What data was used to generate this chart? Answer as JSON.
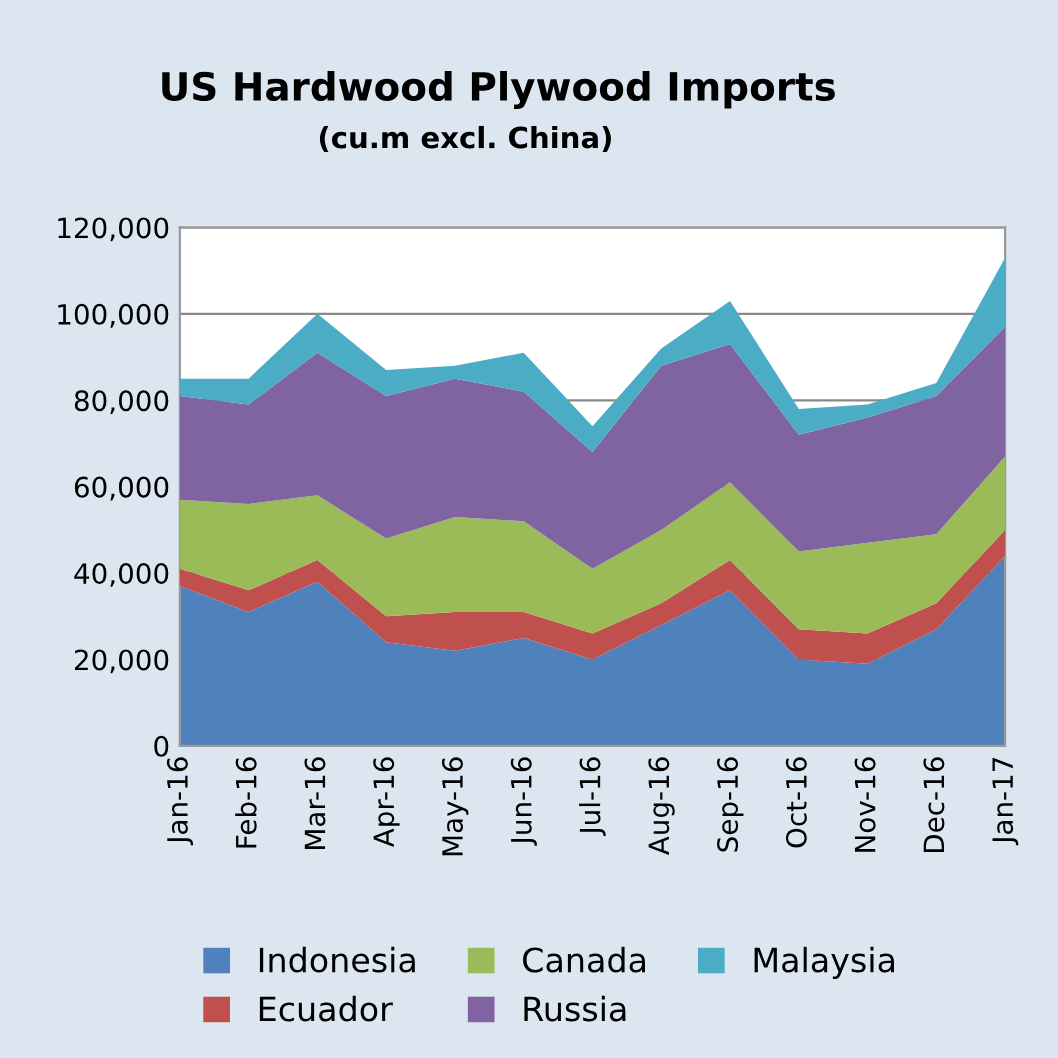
{
  "chart_data": {
    "type": "area",
    "stacked": true,
    "title": "US Hardwood Plywood Imports",
    "subtitle": "(cu.m excl. China)",
    "categories": [
      "Jan-16",
      "Feb-16",
      "Mar-16",
      "Apr-16",
      "May-16",
      "Jun-16",
      "Jul-16",
      "Aug-16",
      "Sep-16",
      "Oct-16",
      "Nov-16",
      "Dec-16",
      "Jan-17"
    ],
    "series": [
      {
        "name": "Indonesia",
        "color": "#4f81bd",
        "values": [
          37000,
          31000,
          38000,
          24000,
          22000,
          25000,
          20000,
          28000,
          36000,
          20000,
          19000,
          27000,
          44000
        ]
      },
      {
        "name": "Ecuador",
        "color": "#c0504d",
        "values": [
          4000,
          5000,
          5000,
          6000,
          9000,
          6000,
          6000,
          5000,
          7000,
          7000,
          7000,
          6000,
          6000
        ]
      },
      {
        "name": "Canada",
        "color": "#9bbb59",
        "values": [
          16000,
          20000,
          15000,
          18000,
          22000,
          21000,
          15000,
          17000,
          18000,
          18000,
          21000,
          16000,
          17000
        ]
      },
      {
        "name": "Russia",
        "color": "#8064a2",
        "values": [
          24000,
          23000,
          33000,
          33000,
          32000,
          30000,
          27000,
          38000,
          32000,
          27000,
          29000,
          32000,
          30000
        ]
      },
      {
        "name": "Malaysia",
        "color": "#4bacc6",
        "values": [
          4000,
          6000,
          9000,
          6000,
          3000,
          9000,
          6000,
          4000,
          10000,
          6000,
          3000,
          3000,
          16000
        ]
      }
    ],
    "ylim": [
      0,
      120000
    ],
    "yticks": [
      {
        "value": 0,
        "label": "0"
      },
      {
        "value": 20000,
        "label": "20,000"
      },
      {
        "value": 40000,
        "label": "40,000"
      },
      {
        "value": 60000,
        "label": "60,000"
      },
      {
        "value": 80000,
        "label": "80,000"
      },
      {
        "value": 100000,
        "label": "100,000"
      },
      {
        "value": 120000,
        "label": "120,000"
      }
    ],
    "grid": "y",
    "legend": "bottom"
  }
}
